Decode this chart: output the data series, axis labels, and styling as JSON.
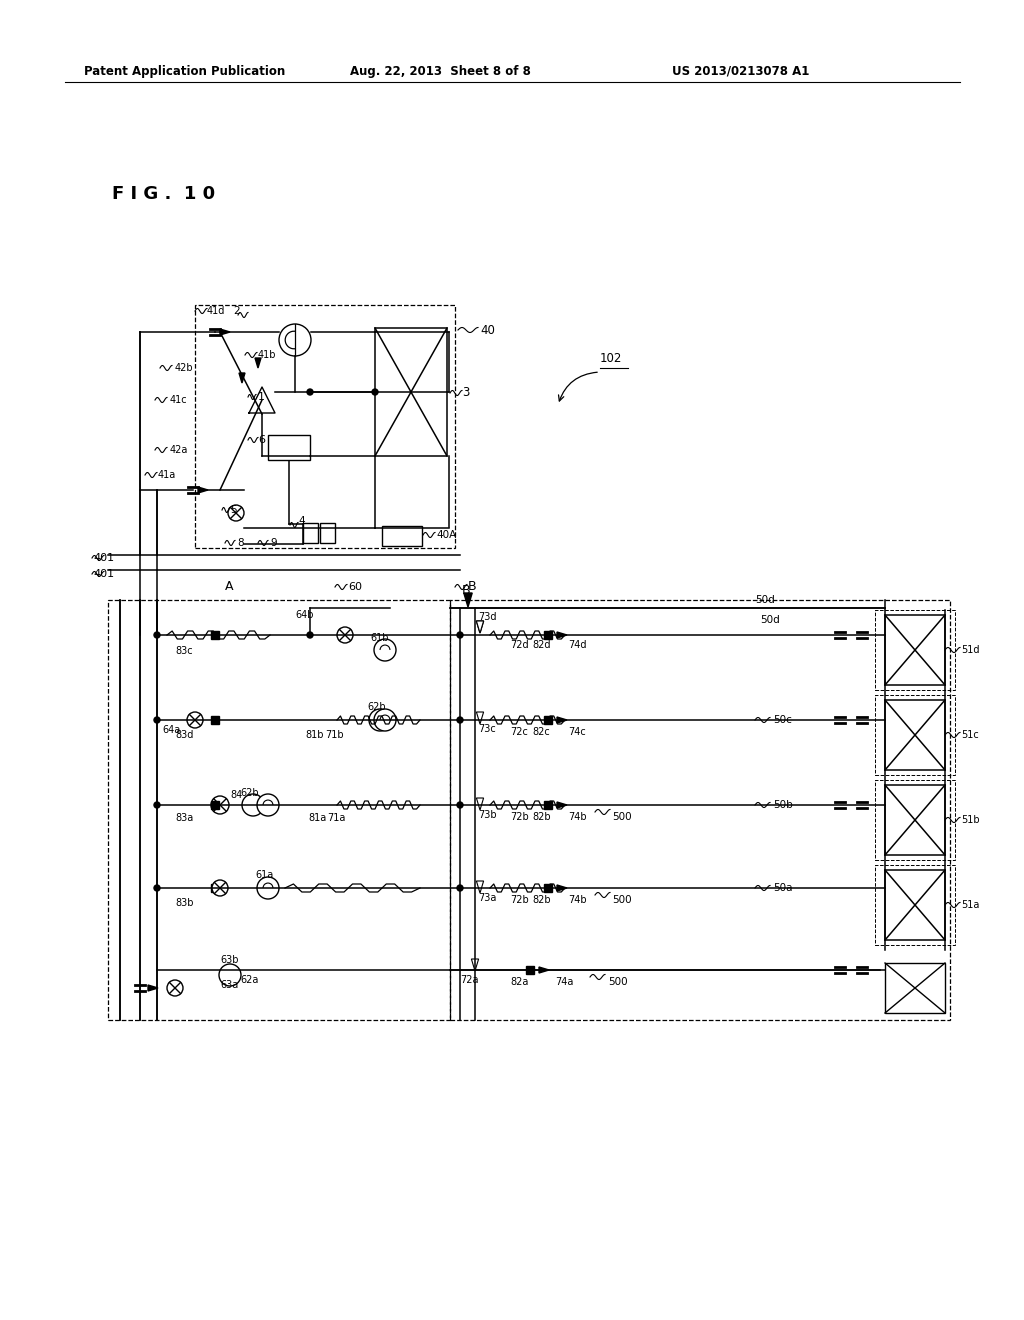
{
  "bg": "#ffffff",
  "header_left": "Patent Application Publication",
  "header_center": "Aug. 22, 2013  Sheet 8 of 8",
  "header_right": "US 2013/0213078 A1",
  "fig_label": "F I G .  1 0"
}
